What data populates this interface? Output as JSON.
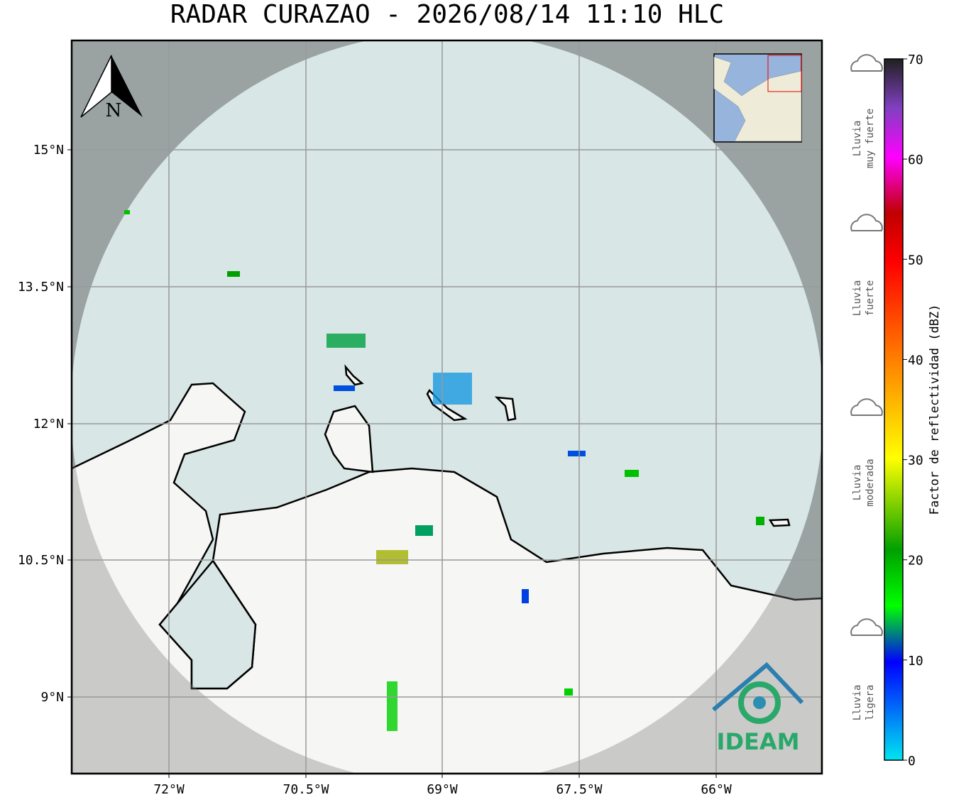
{
  "title": "RADAR CURAZAO - 2026/08/14 11:10 HLC",
  "map": {
    "lat_labels": [
      "15°N",
      "13.5°N",
      "12°N",
      "10.5°N",
      "9°N"
    ],
    "lon_labels": [
      "72°W",
      "70.5°W",
      "69°W",
      "67.5°W",
      "66°W"
    ],
    "north": "N",
    "logo": "IDEAM"
  },
  "colorbar": {
    "label": "Factor de reflectividad (dBZ)",
    "lim": [
      0,
      70
    ],
    "ticks": [
      0,
      10,
      20,
      30,
      40,
      50,
      60,
      70
    ]
  },
  "legend": [
    [
      "Lluvia",
      "muy fuerte"
    ],
    [
      "Lluvia",
      "fuerte"
    ],
    [
      "Lluvia",
      "moderada"
    ],
    [
      "Lluvia",
      "ligera"
    ]
  ]
}
